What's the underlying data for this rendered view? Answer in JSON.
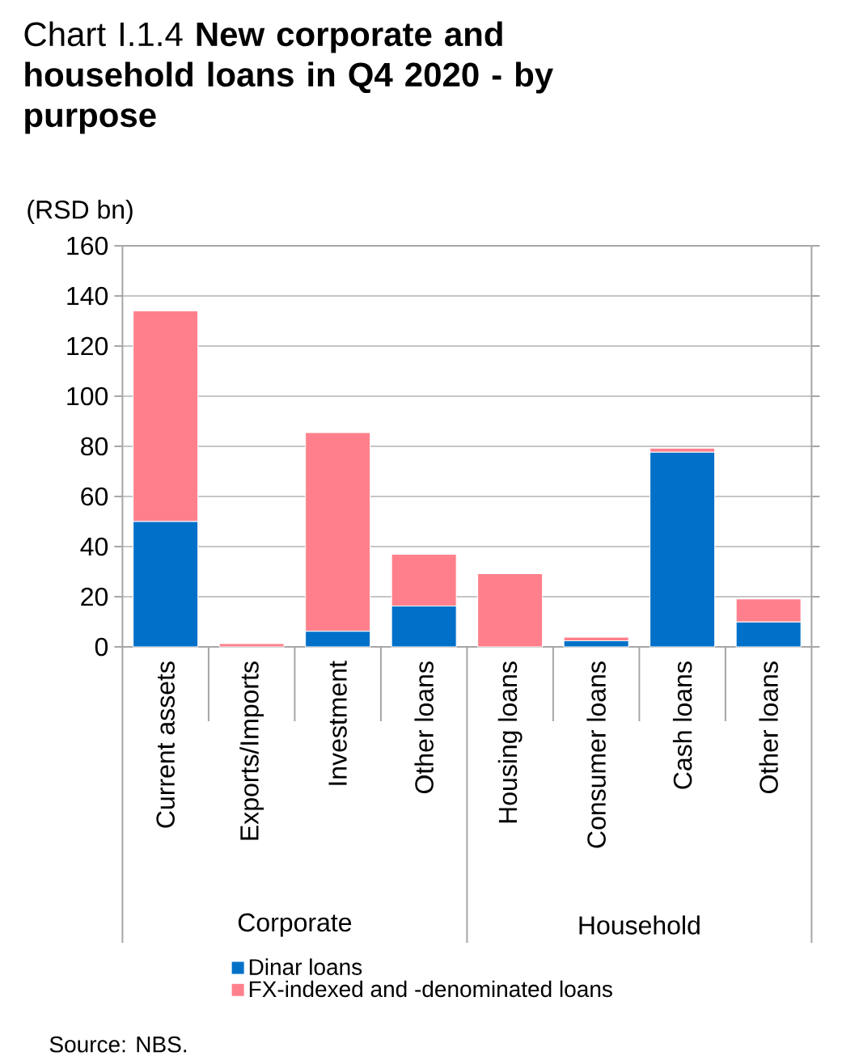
{
  "chart_data": {
    "type": "bar",
    "stacked": true,
    "title": "Chart I.1.4 **New corporate and household loans in Q4 2020 - by purpose**",
    "ylabel": "(RSD bn)",
    "categories": [
      "Current assets",
      "Exports/Imports",
      "Investment",
      "Other loans",
      "Housing loans",
      "Consumer loans",
      "Cash loans",
      "Other loans"
    ],
    "series": [
      {
        "name": "Dinar loans",
        "color": "#0070c8",
        "values": [
          50,
          0,
          6.2,
          16.3,
          0,
          2.4,
          77.7,
          9.9
        ]
      },
      {
        "name": "FX-indexed and -denominated loans",
        "color": "#ff808c",
        "values": [
          84,
          1.3,
          79.3,
          20.6,
          29.2,
          1.5,
          1.6,
          9.2
        ]
      }
    ],
    "ylim": [
      0,
      160
    ],
    "yticks": [
      0,
      20,
      40,
      60,
      80,
      100,
      120,
      140,
      160
    ],
    "grid": "y",
    "legend": "bottom",
    "annotations": [
      "Corporate",
      "Household",
      "Source: NBS."
    ]
  }
}
